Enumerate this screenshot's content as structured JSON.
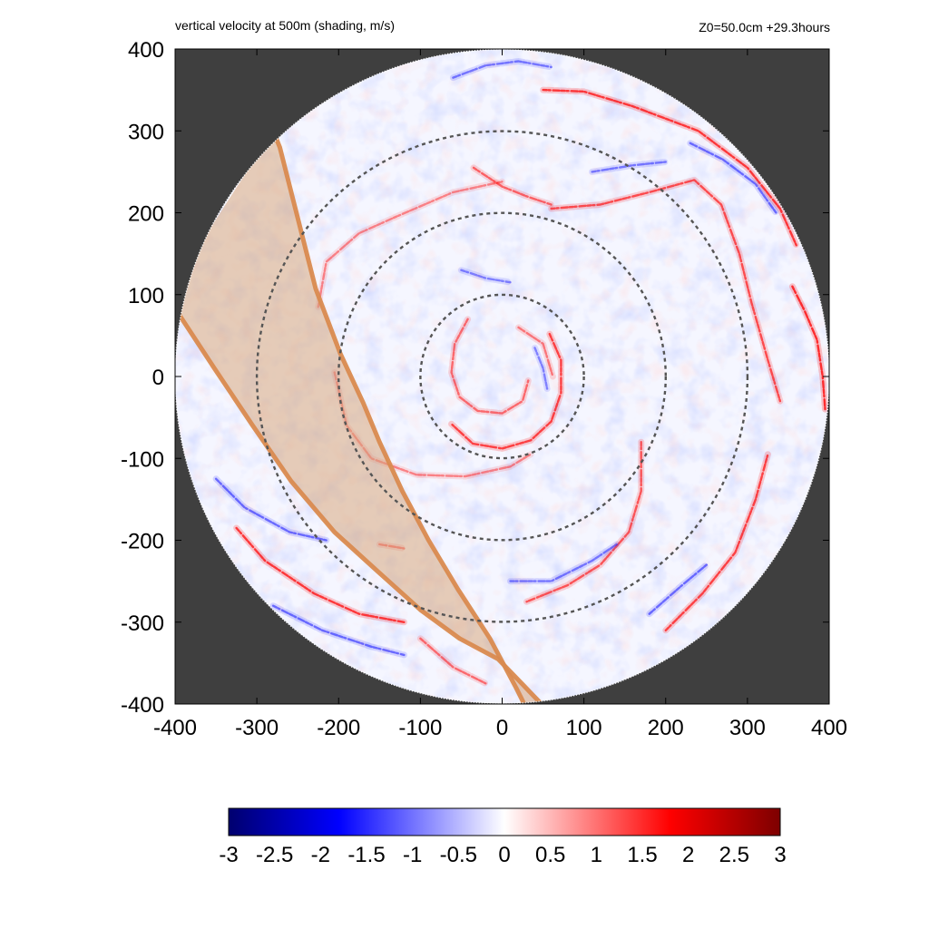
{
  "header": {
    "title": "vertical velocity at 500m (shading, m/s)",
    "info": "Z0=50.0cm  +29.3hours"
  },
  "colors": {
    "background_mask": "#3f3f3f",
    "negative_extreme": "#00006e",
    "negative": "#0000ff",
    "zero": "#ffffff",
    "positive": "#ff0000",
    "positive_extreme": "#7d0000",
    "swath_fill": "#d7a77e",
    "swath_edge": "#d98a4f",
    "ring": "#555555"
  },
  "chart_data": {
    "type": "heatmap",
    "title": "vertical velocity at 500m (shading, m/s)",
    "annotation": "Z0=50.0cm  +29.3hours",
    "xlabel": "",
    "ylabel": "",
    "xlim": [
      -400,
      400
    ],
    "ylim": [
      -400,
      400
    ],
    "xticks": [
      -400,
      -300,
      -200,
      -100,
      0,
      100,
      200,
      300,
      400
    ],
    "yticks": [
      -400,
      -300,
      -200,
      -100,
      0,
      100,
      200,
      300,
      400
    ],
    "grid": false,
    "domain": {
      "shape": "circle",
      "center": [
        0,
        0
      ],
      "radius": 400
    },
    "range_rings": [
      100,
      200,
      300
    ],
    "swath": {
      "edge_a": [
        [
          -272,
          280
        ],
        [
          -228,
          107
        ],
        [
          -198,
          28
        ],
        [
          -170,
          -32
        ],
        [
          -150,
          -80
        ],
        [
          -122,
          -140
        ],
        [
          -90,
          -200
        ],
        [
          -54,
          -260
        ],
        [
          -15,
          -320
        ],
        [
          17,
          -380
        ],
        [
          27,
          -400
        ]
      ],
      "edge_b": [
        [
          -398,
          80
        ],
        [
          -352,
          10
        ],
        [
          -305,
          -60
        ],
        [
          -258,
          -128
        ],
        [
          -205,
          -190
        ],
        [
          -150,
          -240
        ],
        [
          -100,
          -285
        ],
        [
          -52,
          -320
        ],
        [
          -5,
          -345
        ],
        [
          24,
          -375
        ],
        [
          48,
          -400
        ]
      ]
    },
    "spiral_bands": [
      {
        "sign": "positive",
        "intensity": 0.75,
        "points": [
          [
            58,
            52
          ],
          [
            72,
            20
          ],
          [
            72,
            -20
          ],
          [
            60,
            -55
          ],
          [
            35,
            -78
          ],
          [
            0,
            -88
          ],
          [
            -36,
            -82
          ],
          [
            -62,
            -58
          ]
        ]
      },
      {
        "sign": "positive",
        "intensity": 0.55,
        "points": [
          [
            -42,
            70
          ],
          [
            -58,
            40
          ],
          [
            -62,
            5
          ],
          [
            -52,
            -25
          ],
          [
            -30,
            -42
          ],
          [
            0,
            -45
          ],
          [
            25,
            -30
          ],
          [
            32,
            -5
          ]
        ]
      },
      {
        "sign": "positive",
        "intensity": 0.5,
        "points": [
          [
            20,
            60
          ],
          [
            50,
            40
          ],
          [
            62,
            0
          ]
        ]
      },
      {
        "sign": "positive",
        "intensity": 0.45,
        "points": [
          [
            -205,
            5
          ],
          [
            -190,
            -60
          ],
          [
            -160,
            -100
          ],
          [
            -105,
            -120
          ],
          [
            -45,
            -122
          ],
          [
            10,
            -110
          ],
          [
            35,
            -95
          ]
        ]
      },
      {
        "sign": "positive",
        "intensity": 0.45,
        "points": [
          [
            -225,
            85
          ],
          [
            -215,
            140
          ],
          [
            -175,
            175
          ],
          [
            -130,
            195
          ],
          [
            -60,
            225
          ],
          [
            0,
            238
          ]
        ]
      },
      {
        "sign": "positive",
        "intensity": 0.6,
        "points": [
          [
            -35,
            255
          ],
          [
            0,
            232
          ],
          [
            30,
            220
          ],
          [
            60,
            210
          ]
        ]
      },
      {
        "sign": "positive",
        "intensity": 0.7,
        "points": [
          [
            60,
            205
          ],
          [
            120,
            210
          ],
          [
            180,
            225
          ],
          [
            235,
            240
          ],
          [
            268,
            210
          ],
          [
            290,
            150
          ],
          [
            305,
            90
          ],
          [
            325,
            20
          ],
          [
            340,
            -30
          ]
        ]
      },
      {
        "sign": "positive",
        "intensity": 0.85,
        "points": [
          [
            355,
            110
          ],
          [
            370,
            80
          ],
          [
            385,
            45
          ],
          [
            392,
            0
          ],
          [
            395,
            -40
          ]
        ]
      },
      {
        "sign": "positive",
        "intensity": 0.8,
        "points": [
          [
            50,
            350
          ],
          [
            100,
            348
          ],
          [
            160,
            330
          ],
          [
            240,
            300
          ],
          [
            300,
            255
          ],
          [
            340,
            205
          ],
          [
            360,
            160
          ]
        ]
      },
      {
        "sign": "positive",
        "intensity": 0.65,
        "points": [
          [
            170,
            -80
          ],
          [
            170,
            -140
          ],
          [
            155,
            -190
          ],
          [
            120,
            -230
          ],
          [
            80,
            -255
          ],
          [
            30,
            -275
          ]
        ]
      },
      {
        "sign": "positive",
        "intensity": 0.75,
        "points": [
          [
            200,
            -310
          ],
          [
            245,
            -265
          ],
          [
            285,
            -215
          ],
          [
            310,
            -150
          ],
          [
            325,
            -95
          ]
        ]
      },
      {
        "sign": "positive",
        "intensity": 0.8,
        "points": [
          [
            -325,
            -185
          ],
          [
            -290,
            -225
          ],
          [
            -230,
            -265
          ],
          [
            -175,
            -290
          ],
          [
            -120,
            -300
          ]
        ]
      },
      {
        "sign": "positive",
        "intensity": 0.55,
        "points": [
          [
            -100,
            -320
          ],
          [
            -60,
            -355
          ],
          [
            -20,
            -375
          ]
        ]
      },
      {
        "sign": "positive",
        "intensity": 0.55,
        "points": [
          [
            -150,
            -205
          ],
          [
            -120,
            -210
          ]
        ]
      },
      {
        "sign": "negative",
        "intensity": 0.55,
        "points": [
          [
            -350,
            -125
          ],
          [
            -315,
            -160
          ],
          [
            -260,
            -190
          ],
          [
            -215,
            -200
          ]
        ]
      },
      {
        "sign": "negative",
        "intensity": 0.55,
        "points": [
          [
            -280,
            -280
          ],
          [
            -220,
            -310
          ],
          [
            -160,
            -330
          ],
          [
            -120,
            -340
          ]
        ]
      },
      {
        "sign": "negative",
        "intensity": 0.5,
        "points": [
          [
            10,
            -250
          ],
          [
            60,
            -250
          ],
          [
            110,
            -225
          ],
          [
            140,
            -205
          ]
        ]
      },
      {
        "sign": "negative",
        "intensity": 0.55,
        "points": [
          [
            180,
            -290
          ],
          [
            220,
            -255
          ],
          [
            250,
            -230
          ]
        ]
      },
      {
        "sign": "negative",
        "intensity": 0.5,
        "points": [
          [
            -60,
            365
          ],
          [
            -20,
            380
          ],
          [
            20,
            385
          ],
          [
            60,
            378
          ]
        ]
      },
      {
        "sign": "negative",
        "intensity": 0.55,
        "points": [
          [
            230,
            285
          ],
          [
            270,
            265
          ],
          [
            310,
            235
          ],
          [
            335,
            200
          ]
        ]
      },
      {
        "sign": "negative",
        "intensity": 0.5,
        "points": [
          [
            110,
            250
          ],
          [
            160,
            258
          ],
          [
            200,
            262
          ]
        ]
      },
      {
        "sign": "negative",
        "intensity": 0.45,
        "points": [
          [
            -50,
            130
          ],
          [
            -20,
            120
          ],
          [
            10,
            115
          ]
        ]
      },
      {
        "sign": "negative",
        "intensity": 0.45,
        "points": [
          [
            40,
            35
          ],
          [
            50,
            10
          ],
          [
            55,
            -15
          ]
        ]
      }
    ],
    "colorbar": {
      "min": -3,
      "max": 3,
      "ticks": [
        -3,
        -2.5,
        -2,
        -1.5,
        -1,
        -0.5,
        0,
        0.5,
        1,
        1.5,
        2,
        2.5,
        3
      ],
      "tick_labels": [
        "-3",
        "-2.5",
        "-2",
        "-1.5",
        "-1",
        "-0.5",
        "0",
        "0.5",
        "1",
        "1.5",
        "2",
        "2.5",
        "3"
      ]
    }
  }
}
